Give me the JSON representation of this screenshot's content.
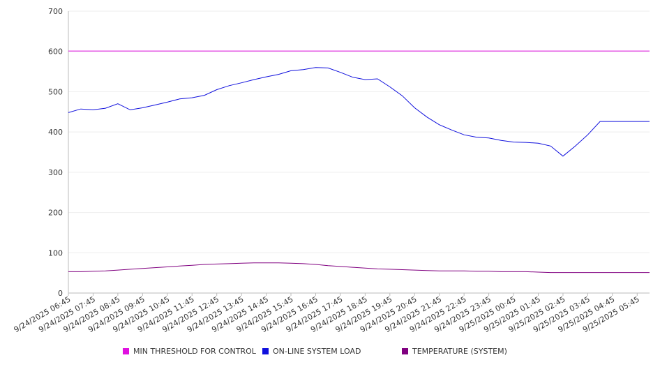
{
  "chart_data": {
    "type": "line",
    "title": "",
    "xlabel": "",
    "ylabel": "",
    "ylim": [
      0,
      700
    ],
    "y_ticks": [
      0,
      100,
      200,
      300,
      400,
      500,
      600,
      700
    ],
    "grid": true,
    "legend_position": "bottom",
    "x_tick_labels": [
      "9/24/2025 06:45",
      "9/24/2025 07:45",
      "9/24/2025 08:45",
      "9/24/2025 09:45",
      "9/24/2025 10:45",
      "9/24/2025 11:45",
      "9/24/2025 12:45",
      "9/24/2025 13:45",
      "9/24/2025 14:45",
      "9/24/2025 15:45",
      "9/24/2025 16:45",
      "9/24/2025 17:45",
      "9/24/2025 18:45",
      "9/24/2025 19:45",
      "9/24/2025 20:45",
      "9/24/2025 21:45",
      "9/24/2025 22:45",
      "9/24/2025 23:45",
      "9/25/2025 00:45",
      "9/25/2025 01:45",
      "9/25/2025 02:45",
      "9/25/2025 03:45",
      "9/25/2025 04:45",
      "9/25/2025 05:45"
    ],
    "x": [
      "9/24/2025 06:45",
      "9/24/2025 07:15",
      "9/24/2025 07:45",
      "9/24/2025 08:15",
      "9/24/2025 08:45",
      "9/24/2025 09:15",
      "9/24/2025 09:45",
      "9/24/2025 10:15",
      "9/24/2025 10:45",
      "9/24/2025 11:15",
      "9/24/2025 11:45",
      "9/24/2025 12:15",
      "9/24/2025 12:45",
      "9/24/2025 13:15",
      "9/24/2025 13:45",
      "9/24/2025 14:15",
      "9/24/2025 14:45",
      "9/24/2025 15:15",
      "9/24/2025 15:45",
      "9/24/2025 16:15",
      "9/24/2025 16:45",
      "9/24/2025 17:15",
      "9/24/2025 17:45",
      "9/24/2025 18:15",
      "9/24/2025 18:45",
      "9/24/2025 19:15",
      "9/24/2025 19:45",
      "9/24/2025 20:15",
      "9/24/2025 20:45",
      "9/24/2025 21:15",
      "9/24/2025 21:45",
      "9/24/2025 22:15",
      "9/24/2025 22:45",
      "9/24/2025 23:15",
      "9/24/2025 23:45",
      "9/25/2025 00:15",
      "9/25/2025 00:45",
      "9/25/2025 01:15",
      "9/25/2025 01:45",
      "9/25/2025 02:15",
      "9/25/2025 02:45",
      "9/25/2025 03:15",
      "9/25/2025 03:45",
      "9/25/2025 04:15",
      "9/25/2025 04:45",
      "9/25/2025 05:15",
      "9/25/2025 05:45",
      "9/25/2025 06:15"
    ],
    "series": [
      {
        "name": "MIN THRESHOLD FOR CONTROL",
        "color": "#e010e0",
        "values": [
          601,
          601,
          601,
          601,
          601,
          601,
          601,
          601,
          601,
          601,
          601,
          601,
          601,
          601,
          601,
          601,
          601,
          601,
          601,
          601,
          601,
          601,
          601,
          601,
          601,
          601,
          601,
          601,
          601,
          601,
          601,
          601,
          601,
          601,
          601,
          601,
          601,
          601,
          601,
          601,
          601,
          601,
          601,
          601,
          601,
          601,
          601,
          601
        ]
      },
      {
        "name": "ON-LINE SYSTEM LOAD",
        "color": "#1010dd",
        "values": [
          448,
          457,
          455,
          459,
          470,
          455,
          460,
          467,
          474,
          482,
          485,
          491,
          505,
          515,
          522,
          530,
          537,
          543,
          552,
          555,
          560,
          559,
          548,
          536,
          530,
          532,
          512,
          490,
          460,
          437,
          418,
          405,
          393,
          387,
          385,
          379,
          375,
          374,
          372,
          365,
          340,
          365,
          393,
          426,
          426,
          426,
          426,
          426
        ]
      },
      {
        "name": "TEMPERATURE (SYSTEM)",
        "color": "#800080",
        "values": [
          53,
          53,
          54,
          55,
          57,
          59,
          61,
          63,
          65,
          67,
          69,
          71,
          72,
          73,
          74,
          75,
          75,
          75,
          74,
          73,
          71,
          68,
          66,
          64,
          62,
          60,
          59,
          58,
          57,
          56,
          55,
          55,
          55,
          54,
          54,
          53,
          53,
          53,
          52,
          51,
          51,
          51,
          51,
          51,
          51,
          51,
          51,
          51
        ]
      }
    ]
  }
}
